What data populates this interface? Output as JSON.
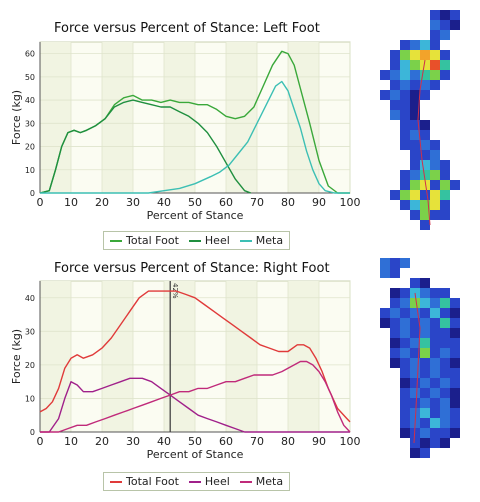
{
  "charts": [
    {
      "id": "left",
      "title": "Force versus Percent of Stance: Left Foot",
      "xlabel": "Percent of Stance",
      "ylabel": "Force (kg)",
      "legend": [
        "Total Foot",
        "Heel",
        "Meta"
      ],
      "colors": {
        "total": "#3aa83a",
        "heel": "#1f8f3f",
        "meta": "#3cbfb4"
      }
    },
    {
      "id": "right",
      "title": "Force versus Percent of Stance: Right Foot",
      "xlabel": "Percent of Stance",
      "ylabel": "Force (kg)",
      "legend": [
        "Total Foot",
        "Heel",
        "Meta"
      ],
      "colors": {
        "total": "#e03a3a",
        "heel": "#a0208a",
        "meta": "#c02a7a"
      },
      "cursor_label": "42%"
    }
  ],
  "chart_data": [
    {
      "type": "line",
      "title": "Force versus Percent of Stance: Left Foot",
      "xlabel": "Percent of Stance",
      "ylabel": "Force (kg)",
      "xlim": [
        0,
        100
      ],
      "ylim": [
        0,
        65
      ],
      "xticks": [
        0,
        10,
        20,
        30,
        40,
        50,
        60,
        70,
        80,
        90,
        100
      ],
      "yticks": [
        0,
        10,
        20,
        30,
        40,
        50,
        60
      ],
      "legend_position": "bottom",
      "series": [
        {
          "name": "Total Foot",
          "color": "#3aa83a",
          "x": [
            0,
            3,
            5,
            7,
            9,
            11,
            13,
            15,
            18,
            21,
            24,
            27,
            30,
            33,
            36,
            39,
            42,
            45,
            48,
            51,
            54,
            57,
            60,
            63,
            66,
            69,
            72,
            75,
            78,
            80,
            82,
            84,
            87,
            90,
            93,
            96,
            100
          ],
          "y": [
            0,
            1,
            10,
            20,
            26,
            27,
            26,
            27,
            29,
            32,
            38,
            41,
            42,
            40,
            40,
            39,
            40,
            39,
            39,
            38,
            38,
            36,
            33,
            32,
            33,
            37,
            46,
            55,
            61,
            60,
            55,
            45,
            30,
            14,
            3,
            0,
            0
          ]
        },
        {
          "name": "Heel",
          "color": "#1f8f3f",
          "x": [
            0,
            3,
            5,
            7,
            9,
            11,
            13,
            15,
            18,
            21,
            24,
            27,
            30,
            33,
            36,
            39,
            42,
            45,
            48,
            51,
            54,
            57,
            60,
            63,
            66,
            68
          ],
          "y": [
            0,
            1,
            10,
            20,
            26,
            27,
            26,
            27,
            29,
            32,
            37,
            39,
            40,
            39,
            38,
            37,
            37,
            35,
            33,
            30,
            26,
            20,
            13,
            6,
            1,
            0
          ]
        },
        {
          "name": "Meta",
          "color": "#3cbfb4",
          "x": [
            0,
            25,
            35,
            40,
            45,
            50,
            55,
            58,
            61,
            64,
            67,
            70,
            73,
            76,
            78,
            80,
            82,
            84,
            86,
            88,
            90,
            92,
            95,
            100
          ],
          "y": [
            0,
            0,
            0,
            1,
            2,
            4,
            7,
            9,
            12,
            17,
            22,
            30,
            38,
            46,
            48,
            44,
            36,
            28,
            18,
            10,
            4,
            1,
            0,
            0
          ]
        }
      ]
    },
    {
      "type": "line",
      "title": "Force versus Percent of Stance: Right Foot",
      "xlabel": "Percent of Stance",
      "ylabel": "Force (kg)",
      "xlim": [
        0,
        100
      ],
      "ylim": [
        0,
        45
      ],
      "xticks": [
        0,
        10,
        20,
        30,
        40,
        50,
        60,
        70,
        80,
        90,
        100
      ],
      "yticks": [
        0,
        10,
        20,
        30,
        40
      ],
      "legend_position": "bottom",
      "cursor_x": 42,
      "series": [
        {
          "name": "Total Foot",
          "color": "#e03a3a",
          "x": [
            0,
            2,
            4,
            6,
            8,
            10,
            12,
            14,
            17,
            20,
            23,
            26,
            29,
            32,
            35,
            38,
            41,
            44,
            47,
            50,
            53,
            56,
            59,
            62,
            65,
            68,
            71,
            74,
            77,
            80,
            83,
            85,
            87,
            89,
            91,
            93,
            96,
            99,
            100
          ],
          "y": [
            6,
            7,
            9,
            13,
            19,
            22,
            23,
            22,
            23,
            25,
            28,
            32,
            36,
            40,
            42,
            42,
            42,
            42,
            41,
            40,
            38,
            36,
            34,
            32,
            30,
            28,
            26,
            25,
            24,
            24,
            26,
            26,
            25,
            22,
            18,
            13,
            7,
            4,
            3
          ]
        },
        {
          "name": "Heel",
          "color": "#a0208a",
          "x": [
            0,
            3,
            6,
            8,
            10,
            12,
            14,
            17,
            20,
            23,
            26,
            29,
            31,
            33,
            36,
            39,
            42,
            45,
            48,
            51,
            54,
            57,
            60,
            63,
            66,
            69,
            72,
            75,
            80,
            85,
            90,
            95,
            100
          ],
          "y": [
            0,
            0,
            4,
            10,
            15,
            14,
            12,
            12,
            13,
            14,
            15,
            16,
            16,
            16,
            15,
            13,
            11,
            9,
            7,
            5,
            4,
            3,
            2,
            1,
            0,
            0,
            0,
            0,
            0,
            0,
            0,
            0,
            0
          ]
        },
        {
          "name": "Meta",
          "color": "#c02a7a",
          "x": [
            0,
            6,
            9,
            12,
            15,
            18,
            21,
            24,
            27,
            30,
            33,
            36,
            39,
            42,
            45,
            48,
            51,
            54,
            57,
            60,
            63,
            66,
            69,
            72,
            75,
            78,
            80,
            82,
            84,
            86,
            88,
            90,
            92,
            94,
            96,
            98,
            100
          ],
          "y": [
            0,
            0,
            1,
            2,
            2,
            3,
            4,
            5,
            6,
            7,
            8,
            9,
            10,
            11,
            12,
            12,
            13,
            13,
            14,
            15,
            15,
            16,
            17,
            17,
            17,
            18,
            19,
            20,
            21,
            21,
            20,
            18,
            15,
            11,
            6,
            2,
            0
          ]
        }
      ]
    }
  ],
  "heatmaps": [
    {
      "id": "left-footprint"
    },
    {
      "id": "right-footprint"
    }
  ]
}
